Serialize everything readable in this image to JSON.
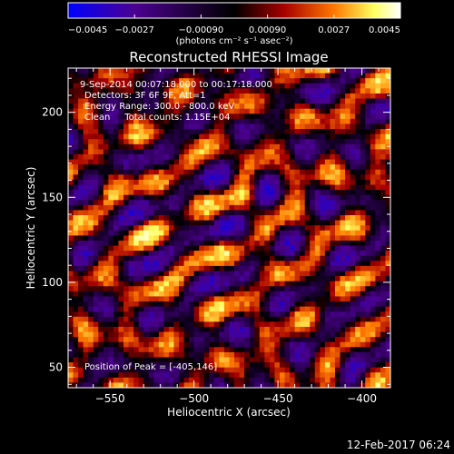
{
  "chart_data": {
    "type": "heatmap",
    "title": "Reconstructed RHESSI Image",
    "xlabel": "Heliocentric X (arcsec)",
    "ylabel": "Heliocentric Y (arcsec)",
    "xlim": [
      -575,
      -383
    ],
    "ylim": [
      38,
      226
    ],
    "x_ticks": [
      -550,
      -500,
      -450,
      -400
    ],
    "y_ticks": [
      50,
      100,
      150,
      200
    ],
    "x_tick_labels": [
      "−550",
      "−500",
      "−450",
      "−400"
    ],
    "y_tick_labels": [
      "50",
      "100",
      "150",
      "200"
    ],
    "colorbar": {
      "min": -0.0045,
      "max": 0.0045,
      "tick_values": [
        -0.0045,
        -0.0027,
        -0.0009,
        0.0009,
        0.0027,
        0.0045
      ],
      "tick_labels": [
        "−0.0045",
        "−0.0027",
        "−0.00090",
        "0.00090",
        "0.0027",
        "0.0045"
      ],
      "unit_label": "(photons cm⁻² s⁻¹ asec⁻²)",
      "colors": [
        "#0000ff",
        "#4b0090",
        "#000000",
        "#a80000",
        "#ff7800",
        "#ffff60",
        "#ffffff"
      ]
    },
    "annotations": [
      "9-Sep-2014 00:07:18.000 to 00:17:18.000",
      "Detectors: 3F 6F 9F, Att=1",
      "Energy Range: 300.0 - 800.0 keV",
      "Clean     Total counts: 1.15E+04"
    ],
    "peak_label": "Position of Peak = [-405,146]",
    "peak": [
      -405,
      146
    ],
    "grid": false
  },
  "footer_date": "12-Feb-2017 06:24"
}
